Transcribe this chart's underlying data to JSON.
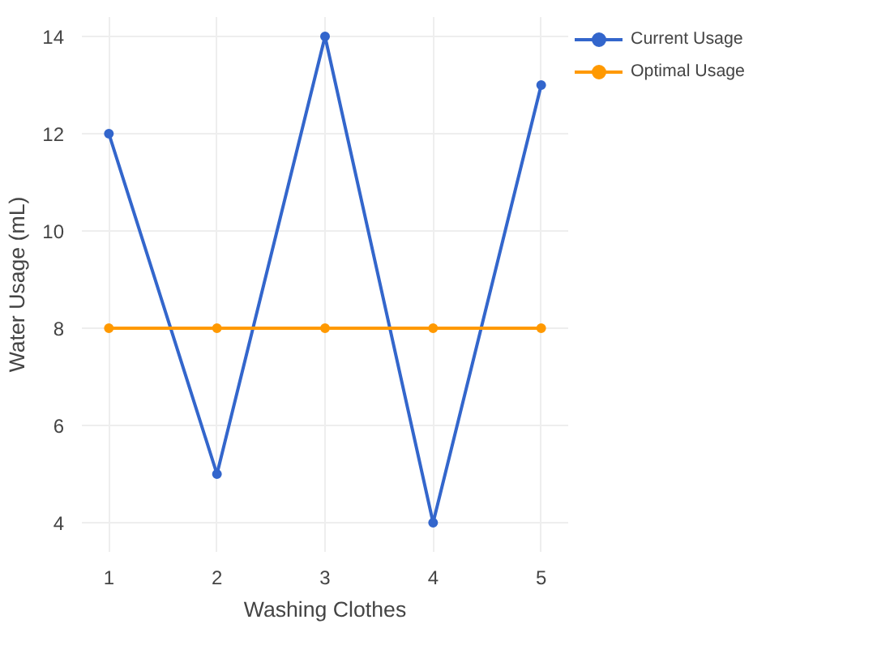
{
  "chart_data": {
    "type": "line",
    "xlabel": "Washing Clothes",
    "ylabel": "Water Usage (mL)",
    "x": [
      1,
      2,
      3,
      4,
      5
    ],
    "series": [
      {
        "name": "Current Usage",
        "color": "#3366cc",
        "values": [
          12,
          5,
          14,
          4,
          13
        ]
      },
      {
        "name": "Optimal Usage",
        "color": "#ff9900",
        "values": [
          8,
          8,
          8,
          8,
          8
        ]
      }
    ],
    "xlim": [
      0.75,
      5.25
    ],
    "ylim": [
      3.4,
      14.4
    ],
    "xticks": [
      1,
      2,
      3,
      4,
      5
    ],
    "yticks": [
      4,
      6,
      8,
      10,
      12,
      14
    ],
    "grid": true,
    "legend": "top right",
    "marker": "circle",
    "line_style": "solid"
  }
}
